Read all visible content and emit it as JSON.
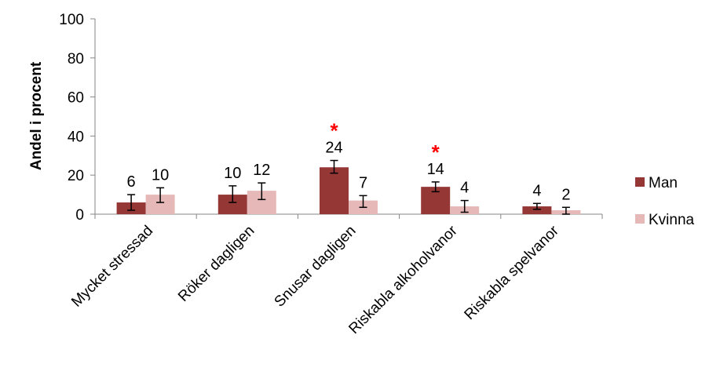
{
  "chart_data": {
    "type": "bar",
    "title": "",
    "xlabel": "",
    "ylabel": "Andel i procent",
    "ylim": [
      0,
      100
    ],
    "yticks": [
      0,
      20,
      40,
      60,
      80,
      100
    ],
    "grid": false,
    "legend_position": "right",
    "categories": [
      "Mycket stressad",
      "Röker dagligen",
      "Snusar dagligen",
      "Riskabla alkoholvanor",
      "Riskabla spelvanor"
    ],
    "series": [
      {
        "name": "Man",
        "color": "#953735",
        "values": [
          6,
          10,
          24,
          14,
          4
        ],
        "labels": [
          "6",
          "10",
          "24",
          "14",
          "4"
        ],
        "error_low": [
          2,
          6,
          21,
          11.5,
          2.5
        ],
        "error_high": [
          10,
          14.5,
          27.5,
          16.5,
          5.5
        ]
      },
      {
        "name": "Kvinna",
        "color": "#E6B9B8",
        "values": [
          10,
          12,
          7,
          4,
          2
        ],
        "labels": [
          "10",
          "12",
          "7",
          "4",
          "2"
        ],
        "error_low": [
          6,
          7.5,
          3.5,
          1,
          0
        ],
        "error_high": [
          13.5,
          16,
          9.5,
          7,
          3.5
        ]
      }
    ],
    "significance_markers": [
      {
        "category_index": 2,
        "symbol": "*",
        "color": "#FF0000"
      },
      {
        "category_index": 3,
        "symbol": "*",
        "color": "#FF0000"
      }
    ]
  }
}
